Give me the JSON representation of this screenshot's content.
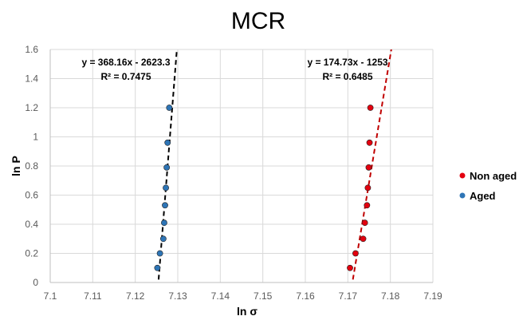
{
  "chart_data": {
    "type": "scatter",
    "title": "MCR",
    "xlabel": "ln σ",
    "ylabel": "ln P",
    "xlim": [
      7.1,
      7.19
    ],
    "ylim": [
      0,
      1.6
    ],
    "xticks": [
      "7.1",
      "7.11",
      "7.12",
      "7.13",
      "7.14",
      "7.15",
      "7.16",
      "7.17",
      "7.18",
      "7.19"
    ],
    "yticks": [
      "0",
      "0.2",
      "0.4",
      "0.6",
      "0.8",
      "1",
      "1.2",
      "1.4",
      "1.6"
    ],
    "grid": true,
    "legend_position": "right",
    "series": [
      {
        "name": "Non aged",
        "color": "#e3000f",
        "x": [
          7.1705,
          7.1718,
          7.1736,
          7.174,
          7.1745,
          7.1747,
          7.1749,
          7.1751,
          7.1753
        ],
        "y": [
          0.1,
          0.2,
          0.3,
          0.41,
          0.53,
          0.65,
          0.79,
          0.96,
          1.2
        ],
        "trendline": {
          "slope": 174.73,
          "intercept": -1253,
          "color": "#c00000",
          "style": "dashed",
          "equation": "y = 174.73x - 1253",
          "r2": "R² = 0.6485"
        }
      },
      {
        "name": "Aged",
        "color": "#2e75b6",
        "x": [
          7.1252,
          7.1258,
          7.1266,
          7.1268,
          7.127,
          7.1272,
          7.1274,
          7.1276,
          7.128
        ],
        "y": [
          0.1,
          0.2,
          0.3,
          0.41,
          0.53,
          0.65,
          0.79,
          0.96,
          1.2
        ],
        "trendline": {
          "slope": 368.16,
          "intercept": -2623.3,
          "color": "#000000",
          "style": "dashed",
          "equation": "y = 368.16x - 2623.3",
          "r2": "R² = 0.7475"
        }
      }
    ]
  }
}
